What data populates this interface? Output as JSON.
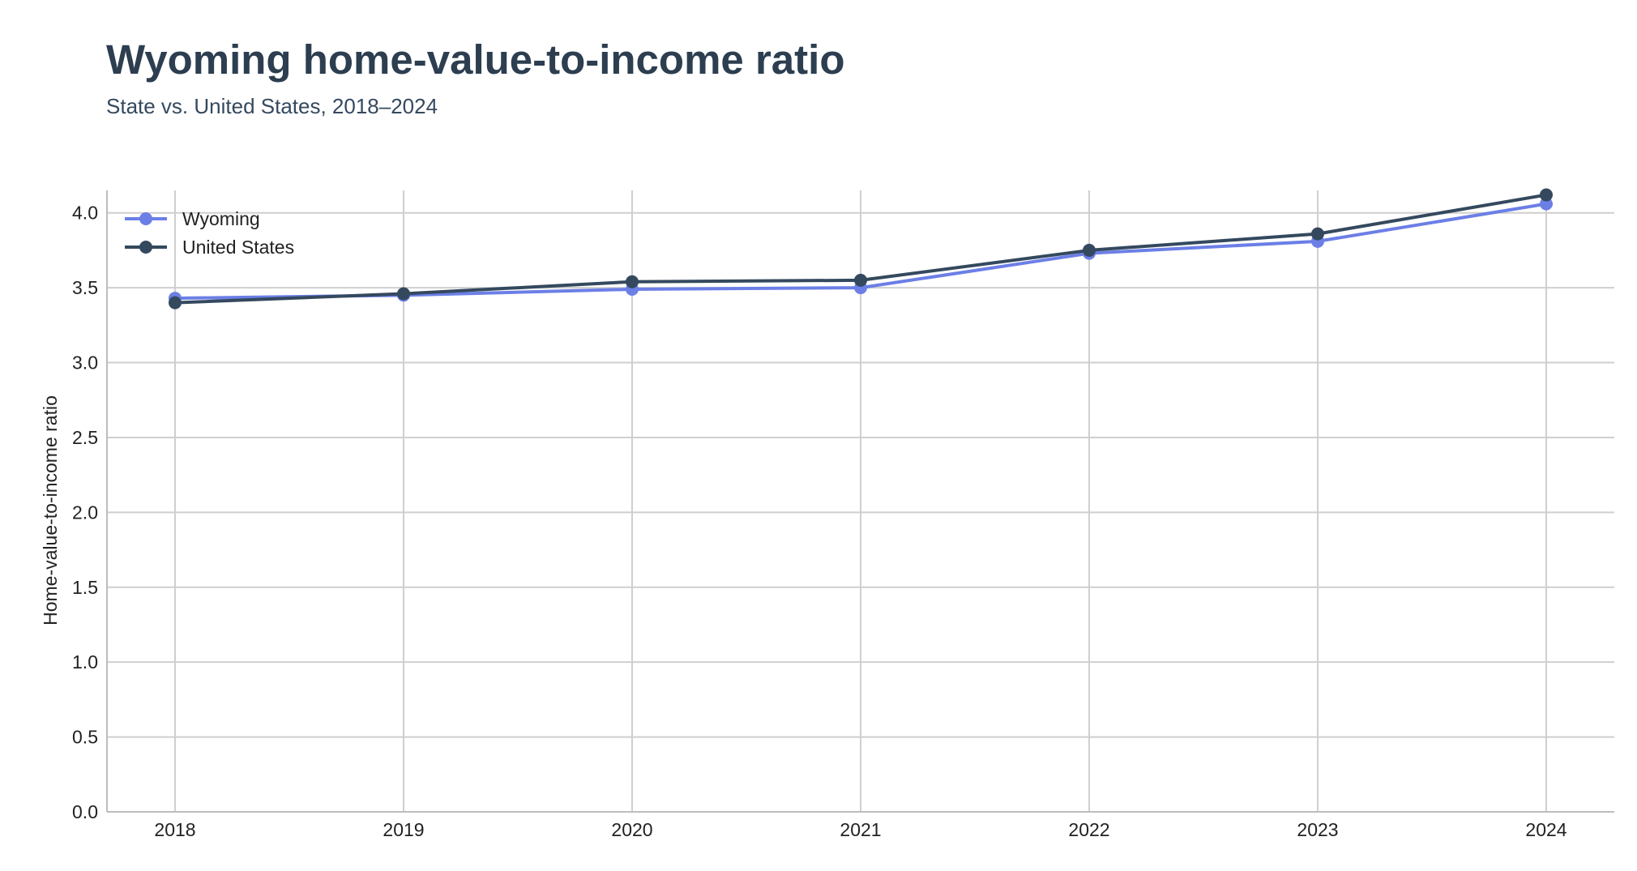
{
  "chart_data": {
    "type": "line",
    "title": "Wyoming home-value-to-income ratio",
    "subtitle": "State vs. United States, 2018–2024",
    "xlabel": "",
    "ylabel": "Home-value-to-income ratio",
    "x": [
      "2018",
      "2019",
      "2020",
      "2021",
      "2022",
      "2023",
      "2024"
    ],
    "ylim": [
      0,
      4.15
    ],
    "yticks": [
      "0.0",
      "0.5",
      "1.0",
      "1.5",
      "2.0",
      "2.5",
      "3.0",
      "3.5",
      "4.0"
    ],
    "grid": true,
    "legend_position": "top-left",
    "series": [
      {
        "name": "Wyoming",
        "color": "#6c7fe6",
        "values": [
          3.43,
          3.45,
          3.49,
          3.5,
          3.73,
          3.81,
          4.06
        ]
      },
      {
        "name": "United States",
        "color": "#34495e",
        "values": [
          3.4,
          3.46,
          3.54,
          3.55,
          3.75,
          3.86,
          4.12
        ]
      }
    ]
  }
}
